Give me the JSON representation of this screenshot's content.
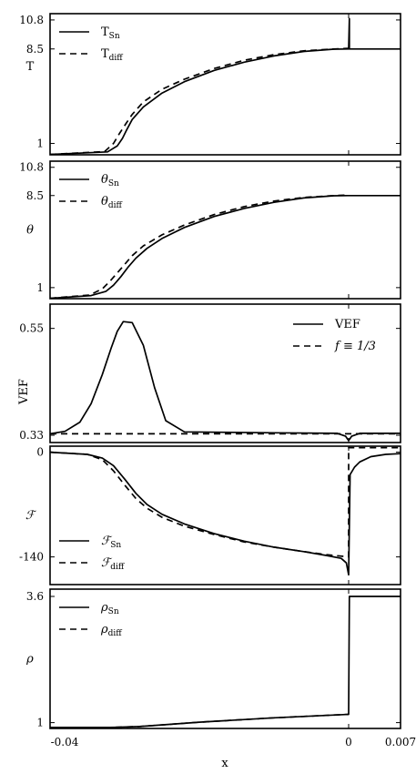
{
  "chart_data": [
    {
      "type": "line",
      "ylabel": "T",
      "ylabel_italic": false,
      "yticks": [
        "1",
        "8.5",
        "10.8"
      ],
      "ylim": [
        0.1,
        11.3
      ],
      "legend_position": "top-left",
      "series": [
        {
          "name": "T",
          "name_sub": "Sn",
          "style": "solid",
          "x": [
            -0.04,
            -0.0323,
            -0.031,
            -0.0303,
            -0.0298,
            -0.029,
            -0.0275,
            -0.025,
            -0.022,
            -0.018,
            -0.014,
            -0.01,
            -0.006,
            -0.002,
            0,
            0.0001,
            0.0001,
            0.0003,
            0.007
          ],
          "y": [
            0.13,
            0.33,
            0.8,
            1.4,
            2.0,
            2.9,
            3.9,
            5.0,
            5.9,
            6.8,
            7.45,
            7.95,
            8.3,
            8.48,
            8.5,
            10.9,
            8.5,
            8.5,
            8.5
          ]
        },
        {
          "name": "T",
          "name_sub": "diff",
          "style": "dashed",
          "x": [
            -0.04,
            -0.0327,
            -0.0315,
            -0.0307,
            -0.0298,
            -0.029,
            -0.0275,
            -0.025,
            -0.022,
            -0.018,
            -0.014,
            -0.01,
            -0.006,
            -0.002,
            0
          ],
          "y": [
            0.13,
            0.35,
            1.0,
            1.8,
            2.6,
            3.3,
            4.3,
            5.3,
            6.1,
            6.95,
            7.6,
            8.05,
            8.35,
            8.5,
            8.55
          ]
        }
      ]
    },
    {
      "type": "line",
      "ylabel": "θ",
      "ylabel_italic": true,
      "yticks": [
        "1",
        "8.5",
        "10.8"
      ],
      "ylim": [
        0.1,
        11.3
      ],
      "legend_position": "top-left",
      "series": [
        {
          "name": "θ",
          "name_sub": "Sn",
          "style": "solid",
          "x": [
            -0.04,
            -0.0345,
            -0.0325,
            -0.0315,
            -0.0305,
            -0.0295,
            -0.0285,
            -0.027,
            -0.025,
            -0.022,
            -0.018,
            -0.014,
            -0.01,
            -0.006,
            -0.002,
            0,
            0.007
          ],
          "y": [
            0.13,
            0.35,
            0.7,
            1.2,
            1.9,
            2.7,
            3.4,
            4.2,
            5.0,
            5.9,
            6.8,
            7.45,
            7.95,
            8.3,
            8.48,
            8.5,
            8.5
          ]
        },
        {
          "name": "θ",
          "name_sub": "diff",
          "style": "dashed",
          "x": [
            -0.04,
            -0.0347,
            -0.033,
            -0.032,
            -0.031,
            -0.03,
            -0.029,
            -0.0275,
            -0.025,
            -0.022,
            -0.018,
            -0.014,
            -0.01,
            -0.006,
            -0.002,
            0
          ],
          "y": [
            0.13,
            0.4,
            0.9,
            1.5,
            2.2,
            2.9,
            3.6,
            4.4,
            5.3,
            6.1,
            6.95,
            7.6,
            8.05,
            8.35,
            8.5,
            8.55
          ]
        }
      ]
    },
    {
      "type": "line",
      "ylabel": "VEF",
      "ylabel_italic": false,
      "yticks": [
        "0.33",
        "0.55"
      ],
      "ylim": [
        0.315,
        0.6
      ],
      "legend_position": "top-right",
      "series": [
        {
          "name": "VEF",
          "style": "solid",
          "x": [
            -0.04,
            -0.038,
            -0.036,
            -0.0345,
            -0.033,
            -0.0318,
            -0.031,
            -0.0302,
            -0.029,
            -0.0275,
            -0.026,
            -0.0245,
            -0.022,
            -0.01,
            -0.0015,
            -0.0004,
            0,
            0.0004,
            0.0015,
            0.007
          ],
          "y": [
            0.333,
            0.338,
            0.357,
            0.395,
            0.455,
            0.51,
            0.544,
            0.564,
            0.562,
            0.515,
            0.428,
            0.36,
            0.337,
            0.335,
            0.334,
            0.328,
            0.319,
            0.328,
            0.334,
            0.334
          ]
        },
        {
          "name": "f ≡ 1/3",
          "style": "dashed",
          "x": [
            -0.04,
            0.007
          ],
          "y": [
            0.333,
            0.333
          ]
        }
      ]
    },
    {
      "type": "line",
      "ylabel": "ℱ",
      "ylabel_italic": true,
      "yticks": [
        "0",
        "-140"
      ],
      "ylim": [
        -177,
        8
      ],
      "legend_position": "bottom-left",
      "series": [
        {
          "name": "ℱ",
          "name_sub": "Sn",
          "style": "solid",
          "x": [
            -0.04,
            -0.035,
            -0.033,
            -0.0315,
            -0.03,
            -0.0285,
            -0.027,
            -0.025,
            -0.022,
            -0.018,
            -0.014,
            -0.01,
            -0.006,
            -0.003,
            -0.001,
            -0.0003,
            0,
            0.0002,
            0.0008,
            0.0015,
            0.003,
            0.005,
            0.007
          ],
          "y": [
            0,
            -3,
            -8,
            -18,
            -36,
            -55,
            -70,
            -83,
            -96,
            -109,
            -119,
            -127,
            -133,
            -138,
            -142,
            -148,
            -164,
            -30,
            -20,
            -13,
            -6,
            -3,
            -2
          ]
        },
        {
          "name": "ℱ",
          "name_sub": "diff",
          "style": "dashed",
          "x": [
            -0.04,
            -0.035,
            -0.033,
            -0.0315,
            -0.03,
            -0.0285,
            -0.027,
            -0.025,
            -0.022,
            -0.018,
            -0.014,
            -0.01,
            -0.006,
            -0.003,
            0,
            0,
            0.007
          ],
          "y": [
            0,
            -3,
            -10,
            -25,
            -44,
            -62,
            -75,
            -87,
            -99,
            -110,
            -120,
            -127,
            -133,
            -137,
            -140,
            6,
            6
          ]
        }
      ]
    },
    {
      "type": "line",
      "ylabel": "ρ",
      "ylabel_italic": true,
      "yticks": [
        "1",
        "3.6"
      ],
      "ylim": [
        0.88,
        3.75
      ],
      "legend_position": "top-left",
      "xlabel": "x",
      "xticks": [
        "-0.04",
        "0",
        "0.007"
      ],
      "series": [
        {
          "name": "ρ",
          "name_sub": "Sn",
          "style": "solid",
          "x": [
            -0.04,
            -0.032,
            -0.028,
            -0.02,
            -0.01,
            0,
            0.0001,
            0.007
          ],
          "y": [
            0.9,
            0.9,
            0.92,
            1.01,
            1.1,
            1.17,
            3.6,
            3.6
          ]
        },
        {
          "name": "ρ",
          "name_sub": "diff",
          "style": "dashed",
          "x": [
            -0.04,
            -0.032,
            -0.028,
            -0.02,
            -0.01,
            0
          ],
          "y": [
            0.9,
            0.9,
            0.92,
            1.01,
            1.1,
            1.17
          ]
        }
      ]
    }
  ]
}
